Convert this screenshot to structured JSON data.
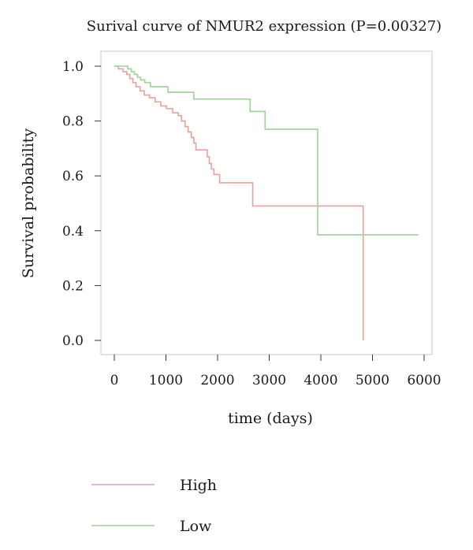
{
  "chart_data": {
    "type": "line",
    "title": "Surival curve of NMUR2 expression (P=0.00327)",
    "xlabel": "time (days)",
    "ylabel": "Survival probability",
    "xlim": [
      0,
      6000
    ],
    "ylim": [
      0.0,
      1.0
    ],
    "x_ticks": [
      "0",
      "1000",
      "2000",
      "3000",
      "4000",
      "5000",
      "6000"
    ],
    "y_ticks": [
      "0.0",
      "0.2",
      "0.4",
      "0.6",
      "0.8",
      "1.0"
    ],
    "grid": false,
    "legend_position": "bottom-left",
    "series": [
      {
        "name": "High",
        "color": "#e8a09a",
        "step": true,
        "points": [
          [
            0,
            1.0
          ],
          [
            80,
            0.99
          ],
          [
            170,
            0.98
          ],
          [
            240,
            0.97
          ],
          [
            300,
            0.955
          ],
          [
            360,
            0.94
          ],
          [
            420,
            0.925
          ],
          [
            500,
            0.91
          ],
          [
            580,
            0.895
          ],
          [
            680,
            0.885
          ],
          [
            790,
            0.87
          ],
          [
            900,
            0.855
          ],
          [
            1010,
            0.845
          ],
          [
            1130,
            0.83
          ],
          [
            1240,
            0.82
          ],
          [
            1300,
            0.8
          ],
          [
            1370,
            0.78
          ],
          [
            1430,
            0.76
          ],
          [
            1490,
            0.74
          ],
          [
            1540,
            0.72
          ],
          [
            1580,
            0.695
          ],
          [
            1800,
            0.67
          ],
          [
            1840,
            0.645
          ],
          [
            1880,
            0.625
          ],
          [
            1930,
            0.605
          ],
          [
            2040,
            0.575
          ],
          [
            2680,
            0.49
          ],
          [
            4820,
            0.0
          ]
        ],
        "end_x": 4820
      },
      {
        "name": "Low",
        "color": "#9fd19a",
        "step": true,
        "points": [
          [
            0,
            1.0
          ],
          [
            260,
            0.99
          ],
          [
            330,
            0.98
          ],
          [
            390,
            0.97
          ],
          [
            450,
            0.96
          ],
          [
            510,
            0.95
          ],
          [
            590,
            0.94
          ],
          [
            700,
            0.925
          ],
          [
            1040,
            0.905
          ],
          [
            1540,
            0.88
          ],
          [
            2630,
            0.835
          ],
          [
            2920,
            0.77
          ],
          [
            3940,
            0.385
          ]
        ],
        "end_x": 5890
      }
    ]
  }
}
